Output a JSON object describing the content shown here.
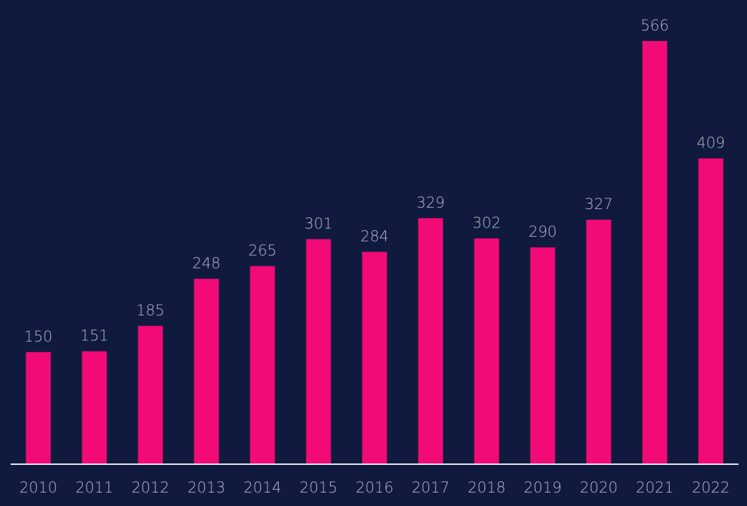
{
  "chart_data": {
    "type": "bar",
    "categories": [
      "2010",
      "2011",
      "2012",
      "2013",
      "2014",
      "2015",
      "2016",
      "2017",
      "2018",
      "2019",
      "2020",
      "2021",
      "2022"
    ],
    "values": [
      150,
      151,
      185,
      248,
      265,
      301,
      284,
      329,
      302,
      290,
      327,
      566,
      409
    ],
    "title": "",
    "xlabel": "",
    "ylabel": "",
    "ylim": [
      0,
      600
    ],
    "grid": false,
    "legend": "none",
    "data_labels": true
  },
  "colors": {
    "background": "#101a3f",
    "bar": "#f20a77",
    "axis_line": "#e6e8ef",
    "label_text": "#b3b7c4"
  }
}
